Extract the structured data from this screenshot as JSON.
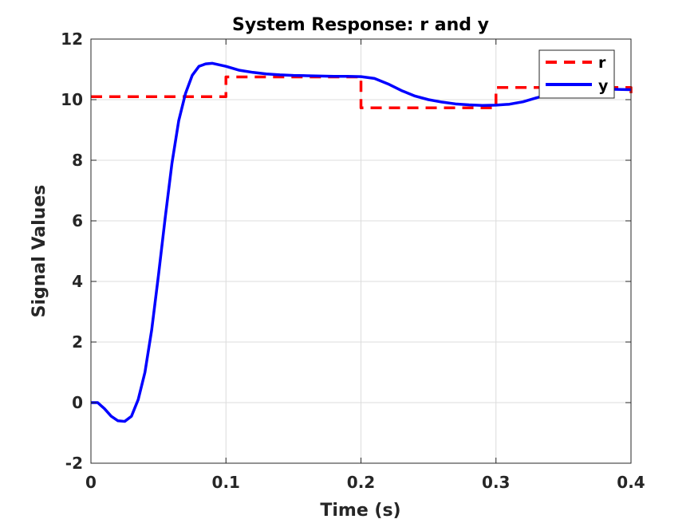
{
  "chart_data": {
    "type": "line",
    "title": "System Response: r and y",
    "xlabel": "Time (s)",
    "ylabel": "Signal Values",
    "xlim": [
      0,
      0.4
    ],
    "ylim": [
      -2,
      12
    ],
    "xticks": [
      0,
      0.1,
      0.2,
      0.3,
      0.4
    ],
    "xtick_labels": [
      "0",
      "0.1",
      "0.2",
      "0.3",
      "0.4"
    ],
    "yticks": [
      -2,
      0,
      2,
      4,
      6,
      8,
      10,
      12
    ],
    "ytick_labels": [
      "-2",
      "0",
      "2",
      "4",
      "6",
      "8",
      "10",
      "12"
    ],
    "grid": true,
    "legend_position": "top-right",
    "series": [
      {
        "name": "r",
        "style": "dashed",
        "color": "#ff0000",
        "step": true,
        "x": [
          0,
          0.1,
          0.1,
          0.2,
          0.2,
          0.3,
          0.3,
          0.4,
          0.4
        ],
        "y": [
          10.1,
          10.1,
          10.75,
          10.75,
          9.73,
          9.73,
          10.4,
          10.4,
          10.1
        ]
      },
      {
        "name": "y",
        "style": "solid",
        "color": "#0000ff",
        "x": [
          0,
          0.005,
          0.01,
          0.015,
          0.02,
          0.025,
          0.03,
          0.035,
          0.04,
          0.045,
          0.05,
          0.055,
          0.06,
          0.065,
          0.07,
          0.075,
          0.08,
          0.085,
          0.09,
          0.095,
          0.1,
          0.11,
          0.12,
          0.13,
          0.14,
          0.15,
          0.16,
          0.17,
          0.18,
          0.19,
          0.2,
          0.21,
          0.22,
          0.23,
          0.24,
          0.25,
          0.26,
          0.27,
          0.28,
          0.29,
          0.3,
          0.31,
          0.32,
          0.33,
          0.34,
          0.35,
          0.36,
          0.37,
          0.38,
          0.39,
          0.4
        ],
        "y": [
          0,
          0,
          -0.2,
          -0.45,
          -0.6,
          -0.62,
          -0.45,
          0.1,
          1.0,
          2.4,
          4.2,
          6.1,
          7.9,
          9.3,
          10.2,
          10.8,
          11.1,
          11.18,
          11.2,
          11.15,
          11.1,
          10.97,
          10.9,
          10.85,
          10.82,
          10.8,
          10.79,
          10.78,
          10.77,
          10.77,
          10.76,
          10.7,
          10.52,
          10.3,
          10.12,
          10.0,
          9.92,
          9.86,
          9.83,
          9.81,
          9.82,
          9.85,
          9.93,
          10.06,
          10.17,
          10.25,
          10.3,
          10.33,
          10.35,
          10.34,
          10.33
        ]
      }
    ]
  }
}
